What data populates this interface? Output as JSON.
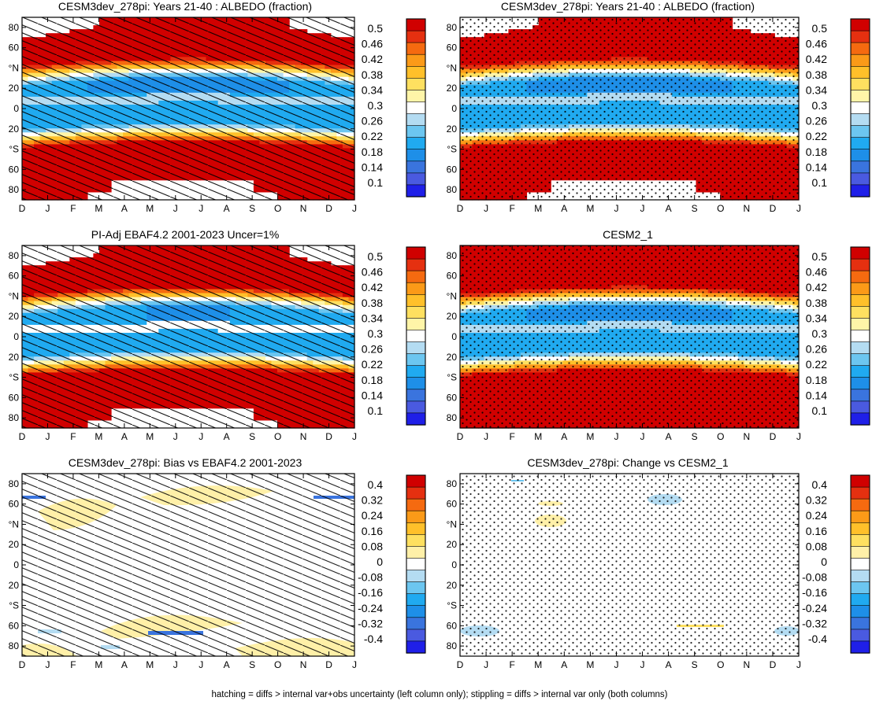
{
  "figure": {
    "footnote": "hatching = diffs > internal var+obs uncertainty (left column only); stippling = diffs > internal var only (both columns)"
  },
  "axes": {
    "months": [
      "D",
      "J",
      "F",
      "M",
      "A",
      "M",
      "J",
      "J",
      "A",
      "S",
      "O",
      "N",
      "D",
      "J"
    ],
    "lat_ticks": [
      "80",
      "60",
      "°N",
      "20",
      "0",
      "20",
      "°S",
      "60",
      "80"
    ]
  },
  "colorbars": {
    "albedo": [
      "0.5",
      "0.46",
      "0.42",
      "0.38",
      "0.34",
      "0.3",
      "0.26",
      "0.22",
      "0.18",
      "0.14",
      "0.1"
    ],
    "diff": [
      "0.4",
      "0.32",
      "0.24",
      "0.16",
      "0.08",
      "0",
      "-0.08",
      "-0.16",
      "-0.24",
      "-0.32",
      "-0.4"
    ]
  },
  "colors": {
    "albedo_scale": [
      "#d00000",
      "#e53010",
      "#f56a10",
      "#fb9a18",
      "#ffc02a",
      "#fee060",
      "#fff5a8",
      "#ffffff",
      "#b4dcf2",
      "#6cc6f0",
      "#20aaf0",
      "#1e8fe8",
      "#3a74de",
      "#4a5ae0",
      "#1f1fe8"
    ],
    "diff_scale": [
      "#d00000",
      "#e53010",
      "#f56a10",
      "#fb9a18",
      "#ffc02a",
      "#fee060",
      "#fff0a8",
      "#ffffff",
      "#b4dcf2",
      "#6cc6f0",
      "#20aaf0",
      "#1e8fe8",
      "#3a74de",
      "#4a5ae0",
      "#1f1fe8"
    ]
  },
  "chart_data": [
    {
      "type": "heatmap",
      "panel": "top-left",
      "title": "CESM3dev_278pi: Years 21-40 : ALBEDO (fraction)",
      "field": "albedo",
      "overlay": "hatching",
      "colorbar": "albedo",
      "xlabel": "",
      "ylabel": ""
    },
    {
      "type": "heatmap",
      "panel": "top-right",
      "title": "CESM3dev_278pi: Years 21-40 : ALBEDO (fraction)",
      "field": "albedo",
      "overlay": "stippling",
      "colorbar": "albedo",
      "xlabel": "",
      "ylabel": ""
    },
    {
      "type": "heatmap",
      "panel": "middle-left",
      "title": "PI-Adj EBAF4.2 2001-2023 Uncer=1%",
      "field": "albedo",
      "overlay": "hatching",
      "colorbar": "albedo",
      "xlabel": "",
      "ylabel": ""
    },
    {
      "type": "heatmap",
      "panel": "middle-right",
      "title": "CESM2_1",
      "field": "albedo",
      "overlay": "stippling",
      "colorbar": "albedo",
      "xlabel": "",
      "ylabel": ""
    },
    {
      "type": "heatmap",
      "panel": "bottom-left",
      "title": "CESM3dev_278pi: Bias vs EBAF4.2 2001-2023",
      "field": "bias",
      "overlay": "hatching",
      "colorbar": "diff",
      "xlabel": "",
      "ylabel": ""
    },
    {
      "type": "heatmap",
      "panel": "bottom-right",
      "title": "CESM3dev_278pi: Change vs CESM2_1",
      "field": "change",
      "overlay": "stippling",
      "colorbar": "diff",
      "xlabel": "",
      "ylabel": ""
    }
  ]
}
